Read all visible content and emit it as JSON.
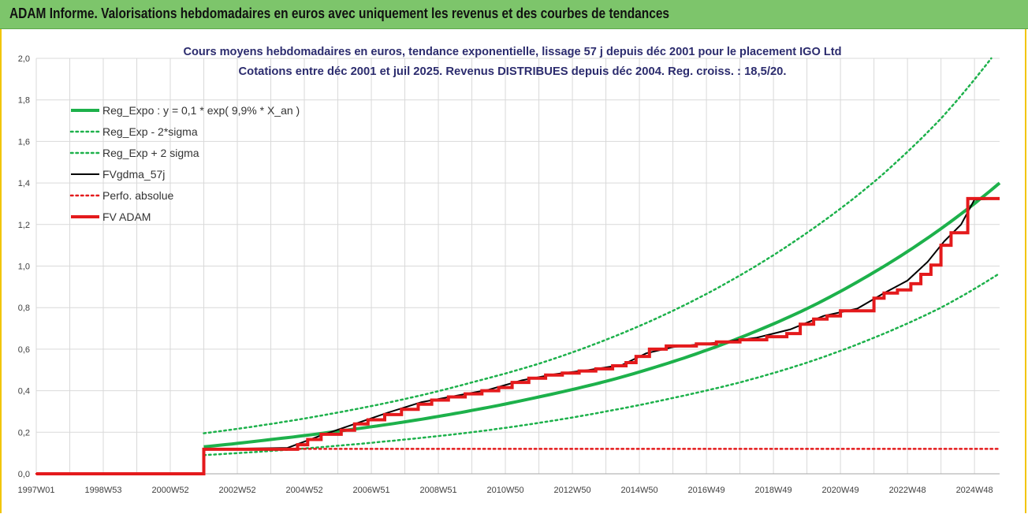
{
  "banner": {
    "title": "ADAM Informe. Valorisations hebdomadaires en euros avec uniquement les revenus et des courbes de tendances"
  },
  "colors": {
    "banner_bg": "#7dc56b",
    "frame_accent": "#f2c500",
    "trend": "#1db14b",
    "fvgdma": "#000000",
    "fvadam": "#e41a1c",
    "grid": "#d9d9d9"
  },
  "chart_data": {
    "type": "line",
    "title": "Cours moyens hebdomadaires en euros, tendance exponentielle, lissage 57 j depuis déc 2001 pour le placement IGO Ltd",
    "subtitle": "Cotations entre déc 2001 et juil 2025. Revenus DISTRIBUES depuis déc 2004. Reg. croiss. : 18,5/20.",
    "xlabel": "",
    "ylabel": "",
    "xlim": [
      1997.0,
      2025.75
    ],
    "ylim": [
      0,
      2.0
    ],
    "yticks": [
      "0,0",
      "0,2",
      "0,4",
      "0,6",
      "0,8",
      "1,0",
      "1,2",
      "1,4",
      "1,6",
      "1,8",
      "2,0"
    ],
    "xticks": [
      {
        "label": "1997W01",
        "x": 1997.0
      },
      {
        "label": "1998W53",
        "x": 1999.0
      },
      {
        "label": "2000W52",
        "x": 2001.0
      },
      {
        "label": "2002W52",
        "x": 2003.0
      },
      {
        "label": "2004W52",
        "x": 2005.0
      },
      {
        "label": "2006W51",
        "x": 2007.0
      },
      {
        "label": "2008W51",
        "x": 2009.0
      },
      {
        "label": "2010W50",
        "x": 2011.0
      },
      {
        "label": "2012W50",
        "x": 2013.0
      },
      {
        "label": "2014W50",
        "x": 2015.0
      },
      {
        "label": "2016W49",
        "x": 2017.0
      },
      {
        "label": "2018W49",
        "x": 2019.0
      },
      {
        "label": "2020W49",
        "x": 2021.0
      },
      {
        "label": "2022W48",
        "x": 2023.0
      },
      {
        "label": "2024W48",
        "x": 2025.0
      }
    ],
    "grid": true,
    "legend_position": "top-left",
    "series": [
      {
        "name": "Reg_Expo : y = 0,1 * exp( 9,9% *  X_an )",
        "style": "solid-thick",
        "color": "#1db14b",
        "x": [
          2002.0,
          2004.0,
          2006.0,
          2008.0,
          2010.0,
          2012.0,
          2014.0,
          2016.0,
          2018.0,
          2020.0,
          2022.0,
          2024.0,
          2025.75
        ],
        "y": [
          0.13,
          0.165,
          0.205,
          0.25,
          0.305,
          0.37,
          0.445,
          0.54,
          0.655,
          0.795,
          0.97,
          1.18,
          1.4
        ]
      },
      {
        "name": "Reg_Exp - 2*sigma",
        "style": "dotted",
        "color": "#1db14b",
        "x": [
          2002.0,
          2004.0,
          2006.0,
          2008.0,
          2010.0,
          2012.0,
          2014.0,
          2016.0,
          2018.0,
          2020.0,
          2022.0,
          2024.0,
          2025.75
        ],
        "y": [
          0.09,
          0.11,
          0.135,
          0.165,
          0.2,
          0.245,
          0.3,
          0.365,
          0.44,
          0.535,
          0.655,
          0.8,
          0.965
        ]
      },
      {
        "name": "Reg_Exp + 2 sigma",
        "style": "dotted",
        "color": "#1db14b",
        "x": [
          2002.0,
          2004.0,
          2006.0,
          2008.0,
          2010.0,
          2012.0,
          2014.0,
          2016.0,
          2018.0,
          2020.0,
          2022.0,
          2024.0,
          2025.5
        ],
        "y": [
          0.195,
          0.24,
          0.295,
          0.36,
          0.44,
          0.53,
          0.645,
          0.785,
          0.955,
          1.16,
          1.405,
          1.71,
          2.0
        ]
      },
      {
        "name": "FVgdma_57j",
        "style": "solid",
        "color": "#000000",
        "x": [
          1997.0,
          2002.0,
          2002.0,
          2004.5,
          2005.5,
          2006.5,
          2007.5,
          2008.5,
          2009.5,
          2010.5,
          2011.5,
          2012.5,
          2013.5,
          2014.5,
          2015.2,
          2016.0,
          2017.5,
          2018.5,
          2019.5,
          2020.5,
          2021.5,
          2022.3,
          2023.0,
          2023.6,
          2024.1,
          2024.6,
          2025.0,
          2025.75
        ],
        "y": [
          0.0,
          0.0,
          0.118,
          0.125,
          0.185,
          0.24,
          0.295,
          0.345,
          0.375,
          0.405,
          0.45,
          0.48,
          0.5,
          0.525,
          0.58,
          0.61,
          0.635,
          0.655,
          0.695,
          0.76,
          0.795,
          0.87,
          0.93,
          1.02,
          1.12,
          1.2,
          1.32,
          1.325
        ]
      },
      {
        "name": "Perfo. absolue",
        "style": "dotted",
        "color": "#e41a1c",
        "x": [
          1997.0,
          2002.0,
          2002.0,
          2004.5,
          2025.75
        ],
        "y": [
          0.0,
          0.0,
          0.118,
          0.12,
          0.12
        ]
      },
      {
        "name": "FV ADAM",
        "style": "solid-thick",
        "color": "#e41a1c",
        "steps": [
          [
            1997.0,
            0.0
          ],
          [
            2002.0,
            0.118
          ],
          [
            2004.8,
            0.14
          ],
          [
            2005.1,
            0.165
          ],
          [
            2005.5,
            0.19
          ],
          [
            2006.1,
            0.21
          ],
          [
            2006.5,
            0.24
          ],
          [
            2006.9,
            0.26
          ],
          [
            2007.4,
            0.285
          ],
          [
            2007.9,
            0.31
          ],
          [
            2008.4,
            0.335
          ],
          [
            2008.8,
            0.355
          ],
          [
            2009.3,
            0.37
          ],
          [
            2009.8,
            0.385
          ],
          [
            2010.3,
            0.4
          ],
          [
            2010.8,
            0.415
          ],
          [
            2011.2,
            0.44
          ],
          [
            2011.7,
            0.46
          ],
          [
            2012.2,
            0.475
          ],
          [
            2012.7,
            0.485
          ],
          [
            2013.2,
            0.495
          ],
          [
            2013.7,
            0.505
          ],
          [
            2014.2,
            0.52
          ],
          [
            2014.6,
            0.535
          ],
          [
            2014.9,
            0.565
          ],
          [
            2015.3,
            0.6
          ],
          [
            2015.8,
            0.615
          ],
          [
            2016.7,
            0.625
          ],
          [
            2017.3,
            0.635
          ],
          [
            2018.0,
            0.645
          ],
          [
            2018.8,
            0.66
          ],
          [
            2019.4,
            0.675
          ],
          [
            2019.8,
            0.72
          ],
          [
            2020.2,
            0.745
          ],
          [
            2020.6,
            0.76
          ],
          [
            2021.0,
            0.785
          ],
          [
            2022.0,
            0.845
          ],
          [
            2022.3,
            0.87
          ],
          [
            2022.7,
            0.885
          ],
          [
            2023.1,
            0.915
          ],
          [
            2023.4,
            0.96
          ],
          [
            2023.7,
            1.005
          ],
          [
            2024.0,
            1.1
          ],
          [
            2024.3,
            1.16
          ],
          [
            2024.8,
            1.325
          ],
          [
            2025.75,
            1.325
          ]
        ]
      }
    ]
  }
}
